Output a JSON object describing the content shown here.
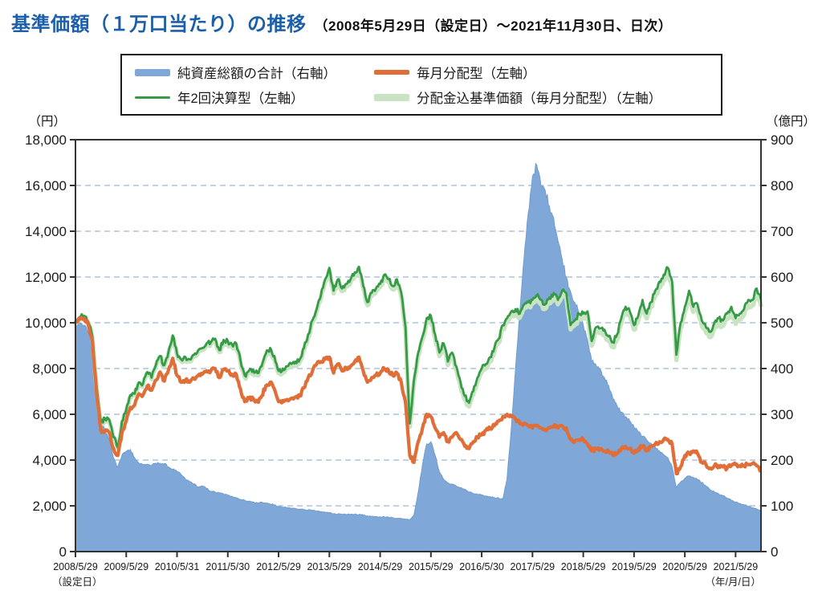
{
  "title": {
    "main": "基準価額（１万口当たり）の推移",
    "sub": "（2008年5月29日（設定日）～2021年11月30日、日次）"
  },
  "legend": {
    "items": [
      {
        "label": "純資産総額の合計（右軸）",
        "color": "#7fa8d9",
        "style": "area"
      },
      {
        "label": "毎月分配型（左軸）",
        "color": "#e06e38",
        "style": "thick-line"
      },
      {
        "label": "年2回決算型（左軸）",
        "color": "#369a47",
        "style": "thin-line"
      },
      {
        "label": "分配金込基準価額（毎月分配型）（左軸）",
        "color": "#c8e4c2",
        "style": "wide-line"
      }
    ]
  },
  "chart_data": {
    "type": "area+line",
    "x_description": "monthly points from 2008/5 to 2021/11 (daily series in source)",
    "x_tick_labels": [
      "2008/5/29",
      "2009/5/29",
      "2010/5/31",
      "2011/5/30",
      "2012/5/29",
      "2013/5/29",
      "2014/5/29",
      "2015/5/29",
      "2016/5/30",
      "2017/5/29",
      "2018/5/29",
      "2019/5/29",
      "2020/5/29",
      "2021/5/29"
    ],
    "x_first_tick_note": "（設定日）",
    "x_axis_note": "（年/月/日）",
    "left_axis": {
      "unit": "（円）",
      "min": 0,
      "max": 18000,
      "step": 2000,
      "labels": [
        "18,000",
        "16,000",
        "14,000",
        "12,000",
        "10,000",
        "8,000",
        "6,000",
        "4,000",
        "2,000",
        "0"
      ]
    },
    "right_axis": {
      "unit": "（億円）",
      "min": 0,
      "max": 900,
      "step": 100,
      "labels": [
        "900",
        "800",
        "700",
        "600",
        "500",
        "400",
        "300",
        "200",
        "100",
        "0"
      ]
    },
    "grid": {
      "horizontal": true,
      "dashed": true,
      "color": "#afc3d9"
    },
    "series": [
      {
        "name": "純資産総額の合計（右軸）",
        "axis": "right",
        "kind": "area",
        "color": "#7fa8d9",
        "edge": "#6e9ccf",
        "values": [
          490,
          500,
          495,
          480,
          455,
          330,
          287,
          264,
          246,
          205,
          184,
          211,
          219,
          223,
          205,
          193,
          190,
          191,
          188,
          193,
          193,
          192,
          185,
          180,
          175,
          168,
          158,
          153,
          148,
          141,
          143,
          138,
          132,
          130,
          128,
          126,
          123,
          121,
          118,
          114,
          112,
          110,
          108,
          106,
          108,
          106,
          104,
          102,
          98,
          97,
          96,
          95,
          94,
          93,
          92,
          91,
          90,
          88,
          87,
          86,
          85,
          83,
          82,
          82,
          81,
          81,
          82,
          81,
          80,
          78,
          77,
          77,
          76,
          76,
          75,
          74,
          73,
          72,
          71,
          70,
          80,
          130,
          190,
          235,
          240,
          210,
          175,
          158,
          150,
          147,
          143,
          140,
          136,
          130,
          127,
          125,
          123,
          121,
          120,
          118,
          117,
          115,
          160,
          270,
          400,
          520,
          640,
          740,
          820,
          845,
          800,
          790,
          755,
          730,
          680,
          640,
          600,
          568,
          545,
          521,
          495,
          463,
          416,
          408,
          398,
          380,
          363,
          334,
          318,
          305,
          295,
          285,
          272,
          262,
          252,
          244,
          237,
          228,
          220,
          212,
          205,
          185,
          140,
          152,
          160,
          165,
          162,
          157,
          151,
          143,
          135,
          130,
          126,
          122,
          117,
          112,
          108,
          105,
          102,
          99,
          96,
          93,
          90
        ]
      },
      {
        "name": "分配金込基準価額（毎月分配型）（左軸）",
        "axis": "left",
        "kind": "line",
        "color": "#c8e4c2",
        "width": 5.5,
        "values": [
          9960,
          10210,
          10260,
          10010,
          9350,
          7150,
          5600,
          5750,
          5700,
          4950,
          4500,
          5650,
          6140,
          6790,
          6840,
          7340,
          7290,
          7790,
          7540,
          8090,
          8480,
          8080,
          8680,
          9380,
          8580,
          8330,
          8420,
          8320,
          8520,
          8720,
          8820,
          9020,
          9070,
          9220,
          8720,
          9160,
          9110,
          8960,
          9010,
          8260,
          7610,
          7810,
          7850,
          7700,
          8000,
          8550,
          8800,
          8450,
          7800,
          7900,
          8000,
          8090,
          8190,
          8290,
          8790,
          9390,
          9990,
          10490,
          11080,
          11780,
          12280,
          11280,
          11780,
          11380,
          11580,
          11770,
          12070,
          12320,
          11470,
          10770,
          11170,
          11370,
          11570,
          11970,
          11770,
          11460,
          11760,
          11160,
          9660,
          5460,
          7360,
          8550,
          9250,
          10050,
          10150,
          9350,
          8550,
          8950,
          8140,
          8540,
          7940,
          7240,
          6640,
          6340,
          6840,
          7440,
          7840,
          8030,
          8330,
          8730,
          9130,
          9730,
          10030,
          10330,
          10420,
          10220,
          10620,
          10720,
          10820,
          11010,
          10810,
          10610,
          10910,
          11110,
          10810,
          11210,
          11110,
          9710,
          9900,
          10200,
          10200,
          10300,
          9000,
          9600,
          9550,
          9500,
          9200,
          8950,
          9290,
          9990,
          10490,
          10290,
          9690,
          10090,
          10790,
          10190,
          10690,
          11180,
          11580,
          11880,
          12180,
          11580,
          8370,
          9770,
          10470,
          11170,
          10470,
          10570,
          9870,
          9570,
          9370,
          9770,
          9960,
          9860,
          10160,
          10450,
          9950,
          10150,
          10350,
          10750,
          10750,
          11250,
          10750
        ]
      },
      {
        "name": "年2回決算型（左軸）",
        "axis": "left",
        "kind": "line",
        "color": "#369a47",
        "width": 2.8,
        "values": [
          10000,
          10250,
          10300,
          10050,
          9400,
          7200,
          5650,
          5800,
          5750,
          5000,
          4550,
          5700,
          6200,
          6850,
          6900,
          7400,
          7350,
          7850,
          7600,
          8150,
          8550,
          8150,
          8750,
          9450,
          8650,
          8400,
          8500,
          8400,
          8600,
          8800,
          8900,
          9100,
          9150,
          9300,
          8800,
          9250,
          9200,
          9050,
          9100,
          8350,
          7700,
          7900,
          7950,
          7800,
          8100,
          8650,
          8900,
          8550,
          7900,
          8000,
          8100,
          8200,
          8300,
          8400,
          8900,
          9500,
          10100,
          10600,
          11200,
          11900,
          12400,
          11400,
          11900,
          11500,
          11700,
          11900,
          12200,
          12450,
          11600,
          10900,
          11300,
          11500,
          11700,
          12100,
          11900,
          11600,
          11900,
          11300,
          9800,
          5600,
          7500,
          8700,
          9400,
          10200,
          10300,
          9500,
          8700,
          9100,
          8300,
          8700,
          8100,
          7400,
          6800,
          6500,
          7000,
          7600,
          8000,
          8200,
          8500,
          8900,
          9300,
          9900,
          10200,
          10500,
          10600,
          10400,
          10800,
          10900,
          11000,
          11200,
          11000,
          10800,
          11100,
          11300,
          11000,
          11400,
          11300,
          9900,
          10100,
          10400,
          10400,
          10500,
          9200,
          9800,
          9750,
          9700,
          9400,
          9150,
          9500,
          10200,
          10700,
          10500,
          9900,
          10300,
          11000,
          10400,
          10900,
          11400,
          11800,
          12100,
          12400,
          11800,
          8600,
          10000,
          10700,
          11400,
          10700,
          10800,
          10100,
          9800,
          9600,
          10000,
          10200,
          10100,
          10400,
          10700,
          10200,
          10400,
          10600,
          11000,
          11000,
          11500,
          11000
        ]
      },
      {
        "name": "毎月分配型（左軸）",
        "axis": "left",
        "kind": "line",
        "color": "#e06e38",
        "width": 4.2,
        "values": [
          10000,
          10150,
          10200,
          9950,
          9200,
          6900,
          5300,
          5250,
          5200,
          4500,
          4200,
          5200,
          5700,
          6300,
          6400,
          6900,
          6850,
          7250,
          7050,
          7500,
          7850,
          7450,
          7950,
          8450,
          7700,
          7400,
          7500,
          7400,
          7550,
          7700,
          7750,
          7900,
          7900,
          8000,
          7600,
          7950,
          7900,
          7750,
          7750,
          7100,
          6550,
          6700,
          6700,
          6550,
          6800,
          7250,
          7400,
          7100,
          6550,
          6600,
          6650,
          6700,
          6750,
          6800,
          7150,
          7600,
          7900,
          8200,
          8300,
          8400,
          8500,
          7800,
          8200,
          7900,
          8000,
          8100,
          8300,
          8500,
          7900,
          7400,
          7600,
          7700,
          7800,
          8000,
          7900,
          7700,
          7800,
          7400,
          6500,
          4200,
          3900,
          4800,
          5400,
          6000,
          5900,
          5400,
          5000,
          5200,
          4800,
          5000,
          5200,
          4900,
          4600,
          4500,
          4800,
          5000,
          5100,
          5300,
          5400,
          5500,
          5700,
          5900,
          6000,
          5900,
          5800,
          5600,
          5600,
          5500,
          5400,
          5500,
          5400,
          5300,
          5400,
          5500,
          5400,
          5500,
          5400,
          4900,
          4800,
          4900,
          4900,
          4700,
          4400,
          4500,
          4500,
          4400,
          4400,
          4200,
          4300,
          4500,
          4600,
          4500,
          4300,
          4500,
          4600,
          4400,
          4600,
          4700,
          4800,
          4900,
          4900,
          4700,
          3400,
          3700,
          4200,
          4300,
          4400,
          4300,
          3900,
          3800,
          3650,
          3750,
          3750,
          3700,
          3650,
          3750,
          3800,
          3750,
          3750,
          3800,
          3850,
          3750,
          3550
        ]
      }
    ]
  }
}
